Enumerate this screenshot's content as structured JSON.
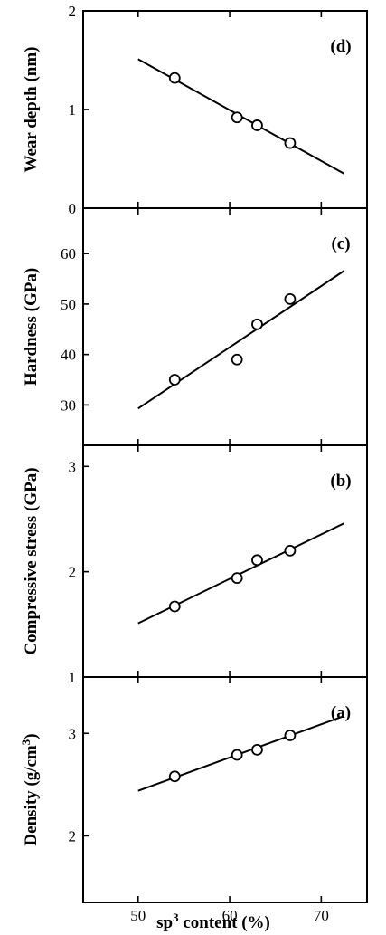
{
  "chart_data": [
    {
      "type": "scatter",
      "panel": "(d)",
      "ylabel": "Wear depth (nm)",
      "ylim": [
        0,
        2
      ],
      "yticks": [
        0,
        1,
        2
      ],
      "xlim": [
        44,
        75
      ],
      "points": [
        {
          "x": 54,
          "y": 1.32
        },
        {
          "x": 60.8,
          "y": 0.92
        },
        {
          "x": 63,
          "y": 0.84
        },
        {
          "x": 66.6,
          "y": 0.66
        }
      ],
      "fit_line": [
        {
          "x": 50,
          "y": 1.51
        },
        {
          "x": 72.5,
          "y": 0.35
        }
      ]
    },
    {
      "type": "scatter",
      "panel": "(c)",
      "ylabel": "Hardness (GPa)",
      "ylim": [
        22,
        69
      ],
      "yticks": [
        30,
        40,
        50,
        60
      ],
      "xlim": [
        44,
        75
      ],
      "points": [
        {
          "x": 54,
          "y": 35
        },
        {
          "x": 60.8,
          "y": 39
        },
        {
          "x": 63,
          "y": 46
        },
        {
          "x": 66.6,
          "y": 51
        }
      ],
      "fit_line": [
        {
          "x": 50,
          "y": 29.3
        },
        {
          "x": 72.5,
          "y": 56.6
        }
      ]
    },
    {
      "type": "scatter",
      "panel": "(b)",
      "ylabel": "Compressive stress (GPa)",
      "ylim": [
        1,
        3.2
      ],
      "yticks": [
        1,
        2,
        3
      ],
      "xlim": [
        44,
        75
      ],
      "points": [
        {
          "x": 54,
          "y": 1.67
        },
        {
          "x": 60.8,
          "y": 1.94
        },
        {
          "x": 63,
          "y": 2.11
        },
        {
          "x": 66.6,
          "y": 2.2
        }
      ],
      "fit_line": [
        {
          "x": 50,
          "y": 1.51
        },
        {
          "x": 72.5,
          "y": 2.46
        }
      ]
    },
    {
      "type": "scatter",
      "panel": "(a)",
      "ylabel": "Density (g/cm³)",
      "ylim": [
        1.35,
        3.55
      ],
      "yticks": [
        2,
        3
      ],
      "xlim": [
        44,
        75
      ],
      "points": [
        {
          "x": 54,
          "y": 2.58
        },
        {
          "x": 60.8,
          "y": 2.79
        },
        {
          "x": 63,
          "y": 2.84
        },
        {
          "x": 66.6,
          "y": 2.98
        }
      ],
      "fit_line": [
        {
          "x": 50,
          "y": 2.44
        },
        {
          "x": 72.5,
          "y": 3.17
        }
      ]
    }
  ],
  "xaxis": {
    "label": "sp³ content (%)",
    "ticks": [
      50,
      60,
      70
    ]
  }
}
